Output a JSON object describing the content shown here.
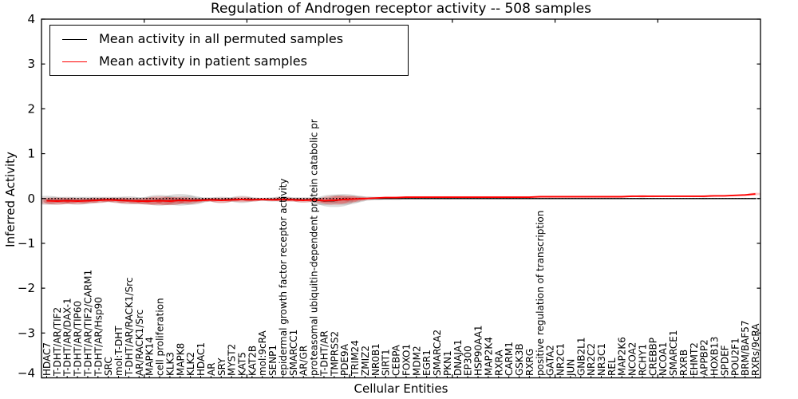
{
  "chart_data": {
    "type": "line",
    "title": "Regulation of Androgen receptor activity -- 508 samples",
    "xlabel": "Cellular Entities",
    "ylabel": "Inferred Activity",
    "ylim": [
      -4,
      4
    ],
    "y_ticks": [
      4,
      3,
      2,
      1,
      0,
      -1,
      -2,
      -3,
      -4
    ],
    "x_major_tick_positions": [
      10,
      20,
      30,
      40,
      50,
      60
    ],
    "grid": false,
    "legend_position": "upper left",
    "zero_line": {
      "y": 0,
      "style": "dotted",
      "color": "#000000"
    },
    "categories": [
      "HDAC7",
      "T-DHT/AR/TIF2",
      "T-DHT/AR/DAX-1",
      "T-DHT/AR/TIP60",
      "T-DHT/AR/TIF2/CARM1",
      "T-DHT/AR/Hsp90",
      "SRC",
      "mol:T-DHT",
      "T-DHT/AR/RACK1/Src",
      "AR/RACK1/Src",
      "MAPK14",
      "cell proliferation",
      "KLK3",
      "MAPK8",
      "KLK2",
      "HDAC1",
      "AR",
      "SRY",
      "MYST2",
      "KAT5",
      "KAT2B",
      "mol:9cRA",
      "SENP1",
      "epidermal growth factor receptor activity",
      "SMARCC1",
      "AR/GR",
      "proteasomal ubiquitin-dependent protein catabolic pr",
      "T-DHT/AR",
      "TMPRSS2",
      "PDE9A",
      "TRIM24",
      "ZMIZ2",
      "NR0B1",
      "SIRT1",
      "CEBPA",
      "FOXO1",
      "MDM2",
      "EGR1",
      "SMARCA2",
      "PKN1",
      "DNAJA1",
      "EP300",
      "HSP90AA1",
      "MAP2K4",
      "RXRA",
      "CARM1",
      "GSK3B",
      "RXRG",
      "positive regulation of transcription",
      "GATA2",
      "NR2C1",
      "JUN",
      "GNB2L1",
      "NR2C2",
      "NR3C1",
      "REL",
      "MAP2K6",
      "NCOA2",
      "RCHY1",
      "CREBBP",
      "NCOA1",
      "SMARCE1",
      "RXRB",
      "EHMT2",
      "APPBP2",
      "HOXB13",
      "SPDEF",
      "POU2F1",
      "BRM/BAF57",
      "RXRs/9cRA"
    ],
    "series": [
      {
        "name": "Mean activity in all permuted samples",
        "color": "#000000",
        "style": "solid",
        "values": [
          -0.04,
          -0.05,
          -0.04,
          -0.05,
          -0.04,
          -0.03,
          -0.02,
          -0.03,
          -0.04,
          -0.05,
          -0.05,
          -0.04,
          -0.05,
          -0.03,
          -0.04,
          -0.03,
          -0.02,
          -0.03,
          -0.02,
          -0.02,
          -0.02,
          -0.02,
          -0.02,
          -0.01,
          -0.02,
          -0.03,
          -0.02,
          -0.06,
          -0.05,
          -0.02,
          -0.01,
          0,
          0,
          0,
          0,
          0,
          0,
          0,
          0,
          0,
          0,
          0,
          0,
          0,
          0,
          0,
          0,
          0,
          0,
          0,
          0,
          0,
          0,
          0,
          0,
          0,
          0,
          0,
          0,
          0,
          0,
          0,
          0,
          0,
          0,
          0,
          0,
          0,
          0,
          0
        ]
      },
      {
        "name": "Mean activity in patient samples",
        "color": "#ff0000",
        "style": "solid",
        "values": [
          -0.05,
          -0.06,
          -0.05,
          -0.06,
          -0.05,
          -0.04,
          -0.03,
          -0.04,
          -0.05,
          -0.06,
          -0.06,
          -0.05,
          -0.06,
          -0.04,
          -0.05,
          -0.04,
          -0.03,
          -0.04,
          -0.03,
          -0.02,
          -0.03,
          -0.02,
          -0.03,
          -0.02,
          -0.03,
          -0.04,
          -0.03,
          -0.05,
          -0.04,
          -0.02,
          -0.01,
          0,
          0.01,
          0.02,
          0.02,
          0.03,
          0.03,
          0.03,
          0.03,
          0.03,
          0.03,
          0.03,
          0.03,
          0.03,
          0.03,
          0.03,
          0.03,
          0.03,
          0.04,
          0.04,
          0.04,
          0.04,
          0.04,
          0.04,
          0.04,
          0.04,
          0.04,
          0.05,
          0.05,
          0.05,
          0.05,
          0.05,
          0.05,
          0.05,
          0.05,
          0.06,
          0.06,
          0.07,
          0.08,
          0.1
        ]
      }
    ],
    "spread": {
      "permuted": {
        "color": "#808080",
        "opacity": 0.28,
        "half_heights": [
          0.1,
          0.09,
          0.08,
          0.09,
          0.08,
          0.07,
          0.06,
          0.07,
          0.09,
          0.08,
          0.09,
          0.12,
          0.1,
          0.13,
          0.1,
          0.06,
          0.05,
          0.07,
          0.05,
          0.08,
          0.05,
          0.04,
          0.05,
          0.06,
          0.05,
          0.06,
          0.05,
          0.09,
          0.14,
          0.12,
          0.08,
          0.05,
          0.04,
          0.03,
          0.03,
          0.02,
          0.02,
          0.02,
          0.02,
          0.02,
          0.015,
          0.015,
          0.015,
          0.015,
          0.015,
          0.015,
          0.015,
          0.015,
          0.015,
          0.015,
          0.01,
          0.01,
          0.01,
          0.01,
          0.01,
          0.01,
          0.01,
          0.015,
          0.02,
          0.015,
          0.01,
          0.01,
          0.01,
          0.015,
          0.02,
          0.015,
          0.01,
          0.01,
          0.015,
          0.02
        ]
      },
      "patient": {
        "color": "#ff0000",
        "opacity": 0.2,
        "half_heights": [
          0.07,
          0.08,
          0.07,
          0.07,
          0.06,
          0.06,
          0.05,
          0.06,
          0.07,
          0.06,
          0.08,
          0.1,
          0.09,
          0.08,
          0.07,
          0.04,
          0.04,
          0.06,
          0.04,
          0.06,
          0.04,
          0.03,
          0.03,
          0.05,
          0.04,
          0.05,
          0.04,
          0.06,
          0.1,
          0.09,
          0.06,
          0.03,
          0.02,
          0.02,
          0.02,
          0.015,
          0.015,
          0.015,
          0.015,
          0.015,
          0.01,
          0.01,
          0.01,
          0.01,
          0.01,
          0.01,
          0.01,
          0.01,
          0.01,
          0.01,
          0.01,
          0.01,
          0.01,
          0.01,
          0.01,
          0.01,
          0.01,
          0.02,
          0.025,
          0.02,
          0.01,
          0.01,
          0.01,
          0.015,
          0.02,
          0.015,
          0.01,
          0.01,
          0.02,
          0.03
        ]
      }
    }
  }
}
